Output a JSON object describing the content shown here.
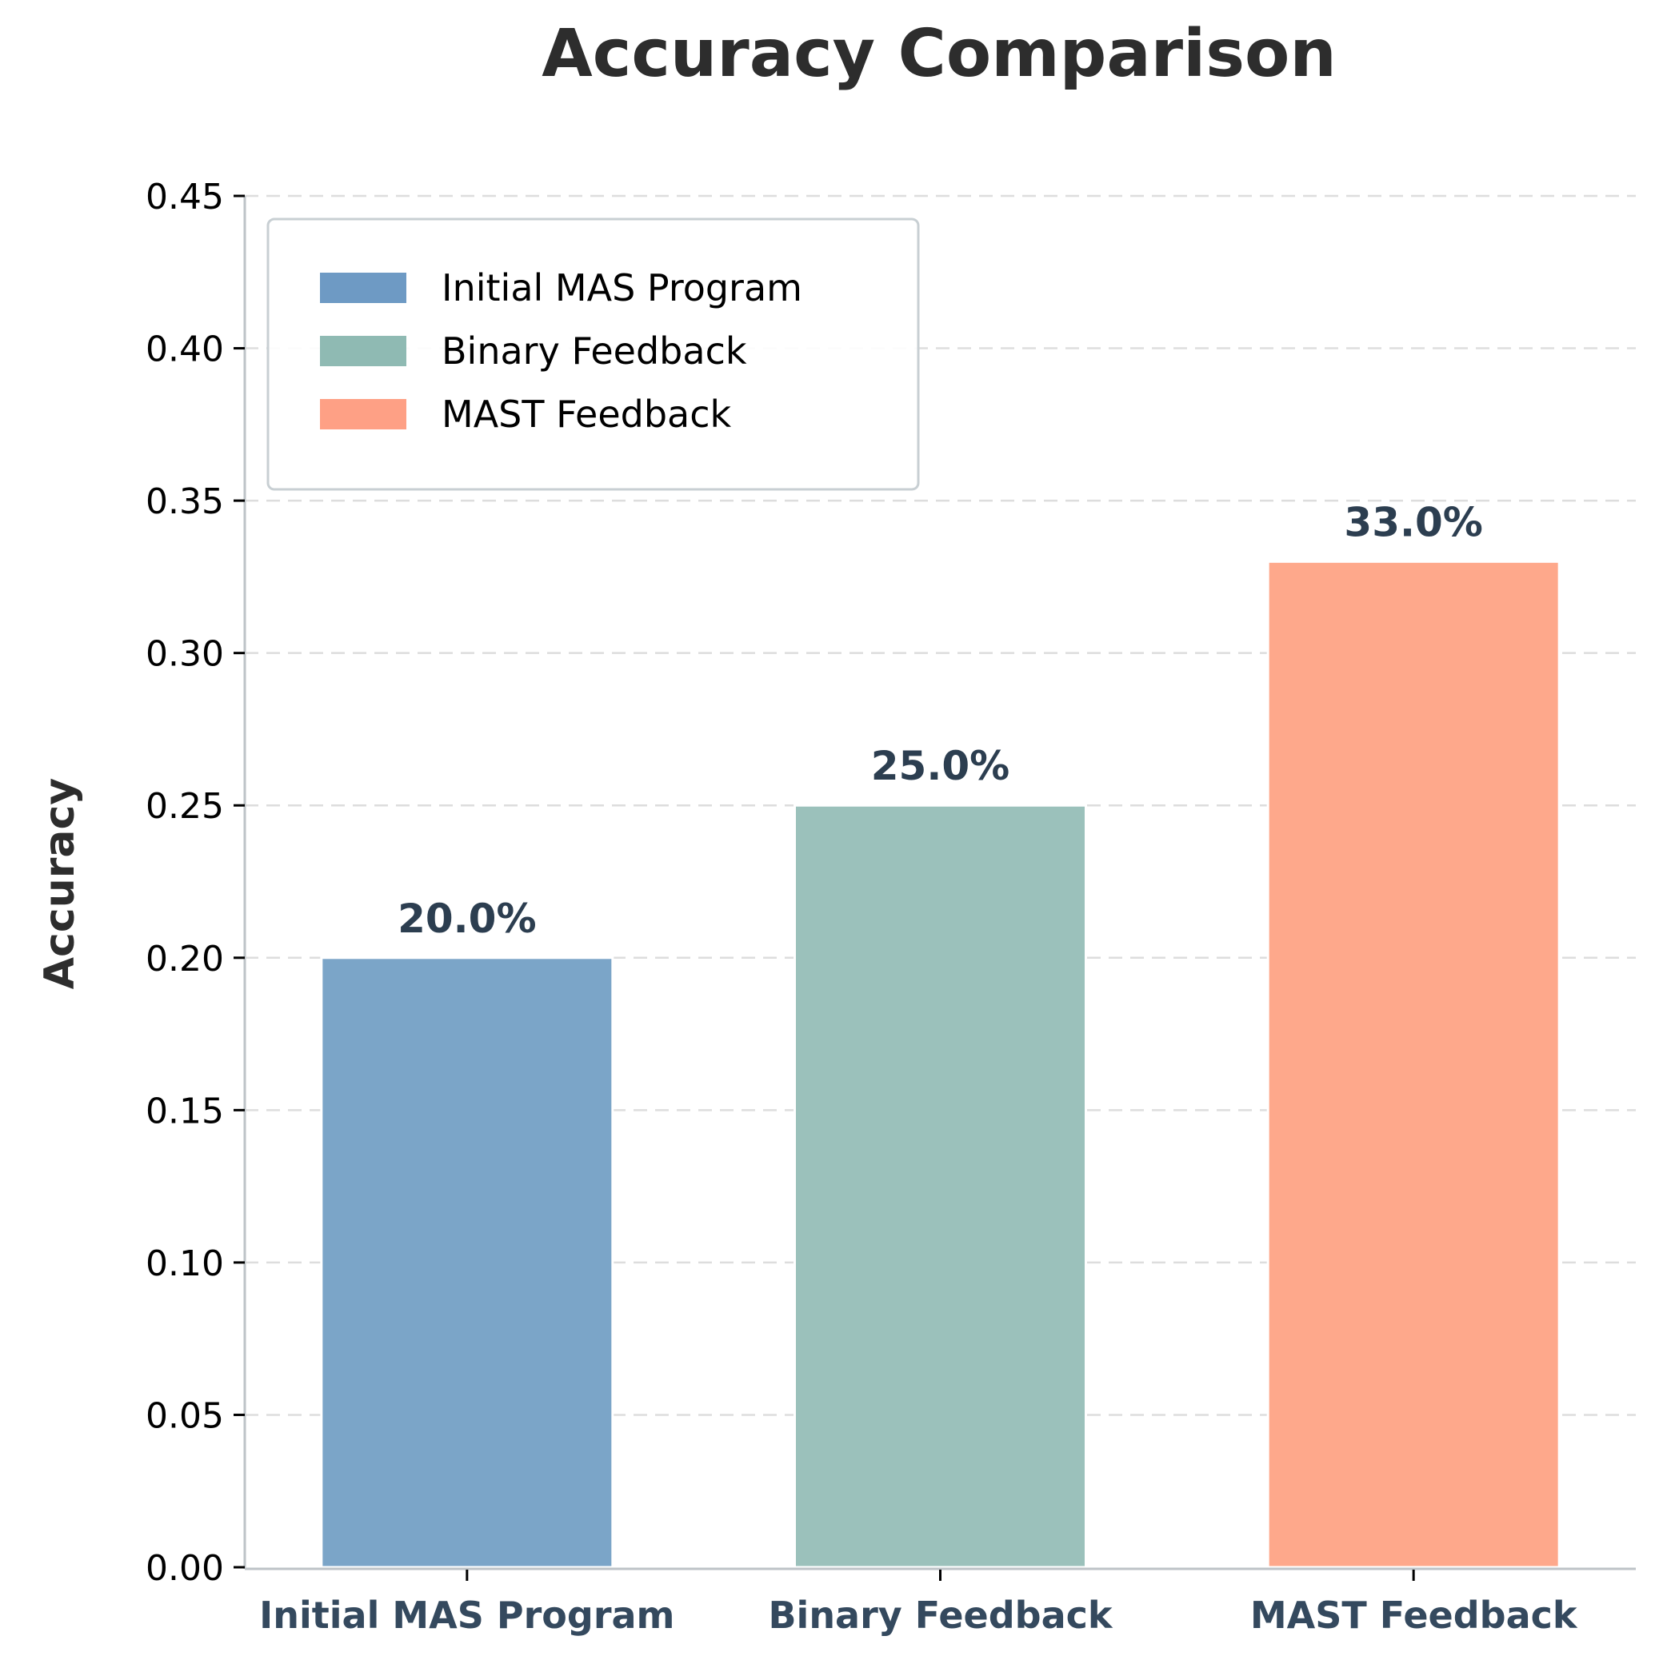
{
  "chart_data": {
    "type": "bar",
    "title": "Accuracy Comparison",
    "xlabel": "",
    "ylabel": "Accuracy",
    "categories": [
      "Initial MAS Program",
      "Binary Feedback",
      "MAST Feedback"
    ],
    "values": [
      0.2,
      0.25,
      0.33
    ],
    "data_labels": [
      "20.0%",
      "25.0%",
      "33.0%"
    ],
    "colors": [
      "#7ba5c8",
      "#9bc1bb",
      "#fea88b"
    ],
    "legend_colors": [
      "#6e9ac4",
      "#8fbab3",
      "#fea085"
    ],
    "ylim": [
      0,
      0.45
    ],
    "yticks": [
      0.0,
      0.05,
      0.1,
      0.15,
      0.2,
      0.25,
      0.3,
      0.35,
      0.4,
      0.45
    ],
    "ytick_labels": [
      "0.00",
      "0.05",
      "0.10",
      "0.15",
      "0.20",
      "0.25",
      "0.30",
      "0.35",
      "0.40",
      "0.45"
    ],
    "grid": "y-dashed",
    "legend": {
      "placement": "top-left",
      "entries": [
        "Initial MAS Program",
        "Binary Feedback",
        "MAST Feedback"
      ]
    }
  }
}
